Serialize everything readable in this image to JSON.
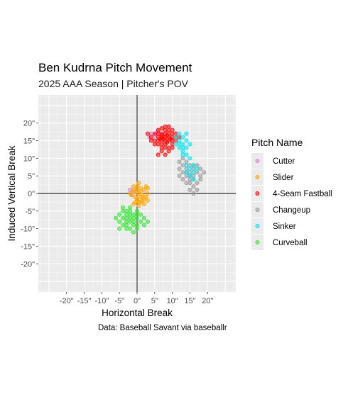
{
  "chart_data": {
    "type": "scatter",
    "title": "Ben Kudrna Pitch Movement",
    "subtitle": "2025 AAA Season | Pitcher's POV",
    "xlabel": "Horizontal Break",
    "ylabel": "Induced Vertical Break",
    "caption": "Data: Baseball Savant via baseballr",
    "xlim": [
      -28,
      28
    ],
    "ylim": [
      -28,
      28
    ],
    "x_ticks": [
      -20,
      -15,
      -10,
      -5,
      0,
      5,
      10,
      15,
      20
    ],
    "x_tick_labels": [
      "-20\"",
      "-15\"",
      "-10\"",
      "-5\"",
      "0\"",
      "5\"",
      "10\"",
      "15\"",
      "20\""
    ],
    "y_ticks": [
      -20,
      -15,
      -10,
      -5,
      0,
      5,
      10,
      15,
      20
    ],
    "y_tick_labels": [
      "-20\"",
      "-15\"",
      "-10\"",
      "-5\"",
      "0\"",
      "5\"",
      "10\"",
      "15\"",
      "20\""
    ],
    "grid": true,
    "reference_lines": {
      "x": 0,
      "y": 0
    },
    "legend": {
      "title": "Pitch Name",
      "position": "right"
    },
    "series": [
      {
        "name": "Cutter",
        "color": "#e07be0",
        "points": [
          [
            4,
            17
          ],
          [
            5,
            16.5
          ],
          [
            3.5,
            16
          ],
          [
            6,
            17.5
          ],
          [
            -1,
            0.5
          ],
          [
            -1.5,
            -0.5
          ],
          [
            -2,
            1
          ]
        ]
      },
      {
        "name": "Slider",
        "color": "#ffa500",
        "points": [
          [
            0,
            2
          ],
          [
            1,
            1.5
          ],
          [
            -1,
            1
          ],
          [
            0.5,
            0
          ],
          [
            1.5,
            -0.5
          ],
          [
            -0.5,
            -1
          ],
          [
            0,
            -2
          ],
          [
            1,
            -2.5
          ],
          [
            2,
            -3
          ],
          [
            -1,
            -3
          ],
          [
            0.5,
            -3.5
          ],
          [
            2.5,
            -1
          ],
          [
            3,
            0
          ],
          [
            2,
            1
          ],
          [
            1,
            0.5
          ],
          [
            -0.5,
            0.5
          ],
          [
            0,
            -1.5
          ],
          [
            1.5,
            -2
          ],
          [
            3,
            -2
          ],
          [
            -1.5,
            -0.5
          ],
          [
            0.5,
            -2.5
          ],
          [
            2,
            -1.5
          ],
          [
            -1,
            2
          ],
          [
            0,
            1
          ],
          [
            1,
            -1
          ],
          [
            -2,
            0
          ],
          [
            2.5,
            2
          ],
          [
            3,
            1.5
          ],
          [
            0.5,
            3
          ],
          [
            -0.5,
            -2.5
          ]
        ]
      },
      {
        "name": "4-Seam Fastball",
        "color": "#ff0000",
        "points": [
          [
            5,
            17
          ],
          [
            6,
            16
          ],
          [
            7,
            15
          ],
          [
            8,
            16
          ],
          [
            9,
            17
          ],
          [
            10,
            16
          ],
          [
            7,
            17
          ],
          [
            8,
            18
          ],
          [
            9,
            15
          ],
          [
            10,
            14
          ],
          [
            6,
            14
          ],
          [
            7,
            13
          ],
          [
            8,
            14
          ],
          [
            9,
            13
          ],
          [
            11,
            16
          ],
          [
            5,
            15
          ],
          [
            6,
            18
          ],
          [
            7,
            18.5
          ],
          [
            8,
            19
          ],
          [
            9,
            19
          ],
          [
            10,
            18
          ],
          [
            11,
            15
          ],
          [
            4,
            16
          ],
          [
            6,
            15
          ],
          [
            7,
            16
          ],
          [
            8,
            17
          ],
          [
            9,
            16
          ],
          [
            10,
            17
          ],
          [
            8,
            15
          ],
          [
            7,
            14
          ],
          [
            6,
            17
          ],
          [
            9,
            18
          ],
          [
            11,
            17
          ],
          [
            10,
            15
          ],
          [
            5,
            14
          ],
          [
            8,
            13
          ],
          [
            7,
            12
          ],
          [
            6,
            11
          ],
          [
            9,
            12
          ],
          [
            8,
            11
          ],
          [
            10,
            13
          ],
          [
            4,
            15
          ],
          [
            3,
            17
          ],
          [
            12,
            16
          ],
          [
            7,
            16.5
          ],
          [
            8.5,
            16.5
          ],
          [
            9.5,
            15.5
          ],
          [
            6.5,
            15.5
          ],
          [
            7.5,
            15.5
          ],
          [
            8.5,
            14.5
          ]
        ]
      },
      {
        "name": "Changeup",
        "color": "#999999",
        "points": [
          [
            13,
            10
          ],
          [
            14,
            9
          ],
          [
            15,
            8
          ],
          [
            16,
            7
          ],
          [
            15,
            6
          ],
          [
            16,
            5
          ],
          [
            17,
            6
          ],
          [
            18,
            7
          ],
          [
            14,
            7
          ],
          [
            15,
            5
          ],
          [
            16,
            4
          ],
          [
            17,
            3
          ],
          [
            18,
            4
          ],
          [
            14,
            6
          ],
          [
            13,
            8
          ],
          [
            12,
            9
          ],
          [
            15,
            3
          ],
          [
            16,
            2
          ],
          [
            17,
            1
          ],
          [
            14,
            5
          ],
          [
            15,
            4
          ],
          [
            13,
            6
          ],
          [
            12,
            7
          ],
          [
            16,
            8
          ],
          [
            18,
            5
          ],
          [
            19,
            6
          ],
          [
            17,
            8
          ],
          [
            14,
            3
          ],
          [
            15,
            1
          ],
          [
            16,
            0
          ],
          [
            13,
            4
          ],
          [
            12,
            5
          ]
        ]
      },
      {
        "name": "Sinker",
        "color": "#00e5ee",
        "points": [
          [
            11,
            16
          ],
          [
            12,
            15
          ],
          [
            13,
            14
          ],
          [
            14,
            13
          ],
          [
            12,
            17
          ],
          [
            13,
            16
          ],
          [
            14,
            15
          ],
          [
            11,
            14
          ],
          [
            13,
            12
          ],
          [
            14,
            11
          ],
          [
            15,
            10
          ],
          [
            15,
            7
          ],
          [
            16,
            8
          ],
          [
            16,
            6
          ],
          [
            14,
            8
          ],
          [
            13,
            13
          ],
          [
            12,
            13
          ],
          [
            14,
            17
          ],
          [
            15,
            14
          ],
          [
            15,
            5
          ],
          [
            16,
            4
          ],
          [
            17,
            7
          ],
          [
            14,
            6
          ],
          [
            13,
            11
          ],
          [
            12,
            14
          ]
        ]
      },
      {
        "name": "Curveball",
        "color": "#32e632",
        "points": [
          [
            -2,
            -5
          ],
          [
            -3,
            -6
          ],
          [
            -4,
            -7
          ],
          [
            -3,
            -8
          ],
          [
            -2,
            -7
          ],
          [
            -1,
            -6
          ],
          [
            0,
            -7
          ],
          [
            1,
            -8
          ],
          [
            -4,
            -5
          ],
          [
            -5,
            -6
          ],
          [
            -3,
            -9
          ],
          [
            -2,
            -10
          ],
          [
            -1,
            -9
          ],
          [
            0,
            -9
          ],
          [
            1,
            -6
          ],
          [
            2,
            -7
          ],
          [
            -4,
            -9
          ],
          [
            -5,
            -8
          ],
          [
            -6,
            -7
          ],
          [
            -2,
            -8
          ],
          [
            -1,
            -8
          ],
          [
            0,
            -5
          ],
          [
            -3,
            -5
          ],
          [
            -4,
            -4
          ],
          [
            -2,
            -4
          ],
          [
            -1,
            -7
          ],
          [
            0,
            -10
          ],
          [
            2,
            -9
          ],
          [
            3,
            -8
          ],
          [
            -3,
            -10
          ],
          [
            -5,
            -10
          ],
          [
            -1,
            -11
          ],
          [
            -2,
            -6
          ],
          [
            -3,
            -7
          ],
          [
            0,
            -6
          ]
        ]
      }
    ]
  }
}
